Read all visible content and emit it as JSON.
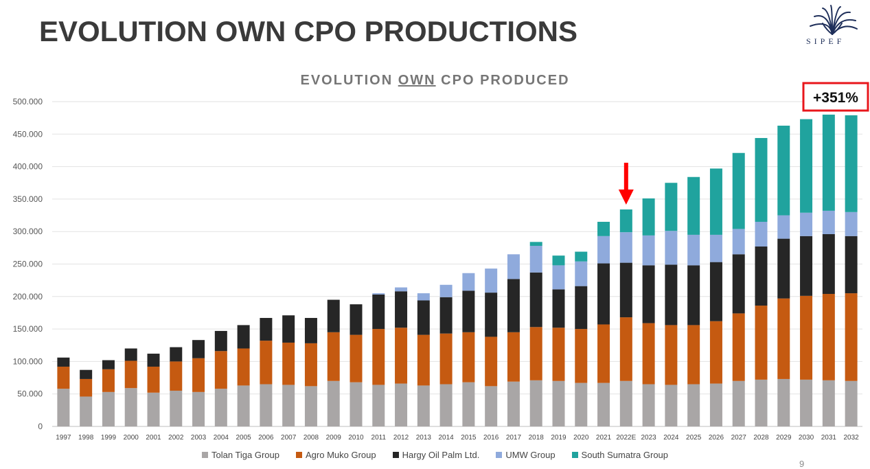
{
  "slide": {
    "title": "EVOLUTION OWN CPO PRODUCTIONS",
    "page_number": "9"
  },
  "logo": {
    "text": "SIPEF",
    "icon": "palm-tree-icon"
  },
  "callout": {
    "text": "+351%",
    "border_color": "#e8161b"
  },
  "marker": {
    "icon": "down-arrow-icon",
    "color": "#ff0000",
    "points_to": "2022E"
  },
  "chart_data": {
    "type": "bar",
    "stacked": true,
    "title_parts": [
      "EVOLUTION ",
      "OWN",
      " CPO PRODUCED"
    ],
    "ylim": [
      0,
      500000
    ],
    "yticks": [
      "0",
      "50.000",
      "100.000",
      "150.000",
      "200.000",
      "250.000",
      "300.000",
      "350.000",
      "400.000",
      "450.000",
      "500.000"
    ],
    "grid": true,
    "legend_position": "bottom",
    "categories": [
      "1997",
      "1998",
      "1999",
      "2000",
      "2001",
      "2002",
      "2003",
      "2004",
      "2005",
      "2006",
      "2007",
      "2008",
      "2009",
      "2010",
      "2011",
      "2012",
      "2013",
      "2014",
      "2015",
      "2016",
      "2017",
      "2018",
      "2019",
      "2020",
      "2021",
      "2022E",
      "2023",
      "2024",
      "2025",
      "2026",
      "2027",
      "2028",
      "2029",
      "2030",
      "2031",
      "2032"
    ],
    "series": [
      {
        "name": "Tolan Tiga Group",
        "color": "#a9a6a6",
        "values": [
          58000,
          46000,
          53000,
          59000,
          52000,
          55000,
          53000,
          58000,
          63000,
          65000,
          64000,
          62000,
          70000,
          68000,
          64000,
          66000,
          63000,
          65000,
          68000,
          62000,
          69000,
          71000,
          70000,
          67000,
          67000,
          70000,
          65000,
          64000,
          65000,
          66000,
          70000,
          72000,
          73000,
          72000,
          71000,
          70000
        ]
      },
      {
        "name": "Agro Muko Group",
        "color": "#c55a11",
        "values": [
          34000,
          27000,
          35000,
          42000,
          40000,
          45000,
          52000,
          58000,
          57000,
          67000,
          65000,
          66000,
          75000,
          73000,
          86000,
          86000,
          78000,
          78000,
          77000,
          76000,
          76000,
          82000,
          82000,
          83000,
          90000,
          98000,
          94000,
          92000,
          91000,
          96000,
          104000,
          114000,
          124000,
          129000,
          133000,
          135000
        ]
      },
      {
        "name": "Hargy Oil Palm Ltd.",
        "color": "#262626",
        "values": [
          14000,
          14000,
          14000,
          19000,
          20000,
          22000,
          28000,
          31000,
          36000,
          35000,
          42000,
          39000,
          50000,
          47000,
          53000,
          56000,
          53000,
          56000,
          64000,
          68000,
          82000,
          84000,
          59000,
          66000,
          94000,
          84000,
          89000,
          93000,
          92000,
          91000,
          91000,
          91000,
          92000,
          92000,
          92000,
          88000
        ]
      },
      {
        "name": "UMW Group",
        "color": "#8faadc",
        "values": [
          0,
          0,
          0,
          0,
          0,
          0,
          0,
          0,
          0,
          0,
          0,
          0,
          0,
          0,
          2000,
          6000,
          11000,
          19000,
          27000,
          37000,
          38000,
          41000,
          37000,
          38000,
          42000,
          47000,
          46000,
          52000,
          47000,
          42000,
          39000,
          38000,
          36000,
          36000,
          36000,
          37000
        ]
      },
      {
        "name": "South Sumatra Group",
        "color": "#20a39e",
        "values": [
          0,
          0,
          0,
          0,
          0,
          0,
          0,
          0,
          0,
          0,
          0,
          0,
          0,
          0,
          0,
          0,
          0,
          0,
          0,
          0,
          0,
          6000,
          15000,
          15000,
          22000,
          35000,
          57000,
          74000,
          89000,
          102000,
          117000,
          129000,
          138000,
          144000,
          148000,
          149000
        ]
      }
    ]
  }
}
